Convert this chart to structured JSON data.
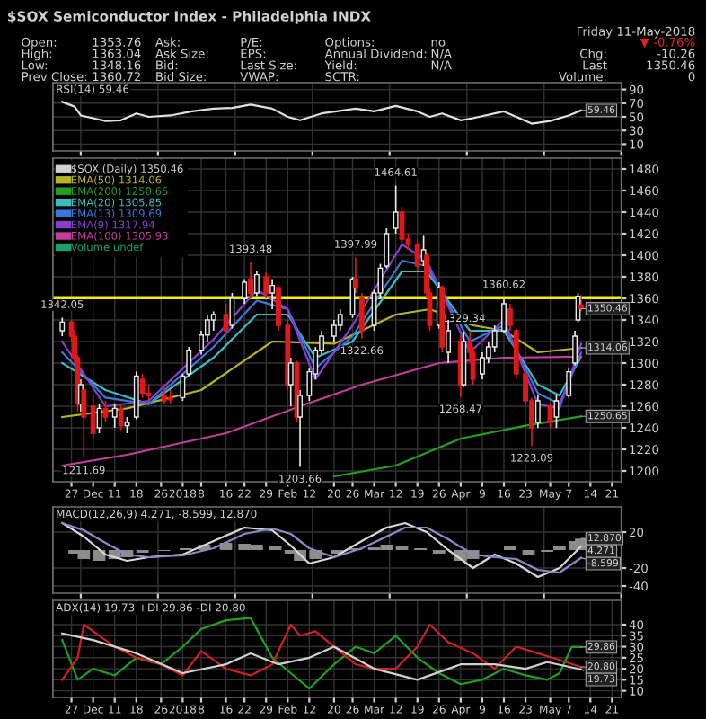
{
  "chart_data": [
    {
      "type": "line",
      "title": "$SOX Semiconductor Index - Philadelphia INDX",
      "subtitle": "RSI(14) 59.46",
      "annotations": [
        "Open:",
        "High:",
        "Low:",
        "Prev Close:",
        "1353.76",
        "1363.04",
        "1348.16",
        "1360.72",
        "Ask:",
        "Ask Size:",
        "Bid:",
        "Bid Size:",
        "P/E:",
        "EPS:",
        "Last Size:",
        "VWAP:",
        "Options:",
        "Annual Dividend:",
        "Yield:",
        "SCTR:",
        "no",
        "N/A",
        "N/A",
        "Friday 11-May-2018",
        "▼ -0.76%",
        "Chg:",
        "-10.26",
        "Last",
        "1350.46",
        "Volume:",
        "0",
        {
          "text": "59.46",
          "x": "2018-05-11",
          "y": 59.46
        }
      ],
      "xlim": [
        "2017-11-21",
        "2018-05-24"
      ],
      "ylim": [
        0,
        100
      ],
      "yticks": [
        10,
        30,
        50,
        70,
        90
      ],
      "grid": true,
      "tick_labels": "y",
      "series": [
        {
          "color": "#e0e0e0",
          "x": [
            "2017-11-24",
            "2017-11-28",
            "2017-11-30",
            "2017-12-04",
            "2017-12-08",
            "2017-12-13",
            "2017-12-18",
            "2017-12-22",
            "2017-12-29",
            "2018-01-05",
            "2018-01-12",
            "2018-01-18",
            "2018-01-24",
            "2018-01-31",
            "2018-02-05",
            "2018-02-09",
            "2018-02-16",
            "2018-02-27",
            "2018-03-05",
            "2018-03-12",
            "2018-03-19",
            "2018-03-23",
            "2018-03-27",
            "2018-04-02",
            "2018-04-06",
            "2018-04-16",
            "2018-04-20",
            "2018-04-25",
            "2018-05-01",
            "2018-05-07",
            "2018-05-11"
          ],
          "values": [
            72,
            65,
            52,
            48,
            44,
            45,
            55,
            50,
            52,
            58,
            62,
            63,
            68,
            62,
            50,
            45,
            55,
            62,
            58,
            66,
            58,
            50,
            55,
            45,
            48,
            58,
            50,
            40,
            44,
            52,
            59.46
          ]
        }
      ]
    },
    {
      "type": "candlestick",
      "subtitle": "$SOX (Daily) 1350.46",
      "x": [
        "2017-11-24",
        "2017-11-27",
        "2017-11-28",
        "2017-11-29",
        "2017-11-30",
        "2017-12-01",
        "2017-12-04",
        "2017-12-06",
        "2017-12-08",
        "2017-12-11",
        "2017-12-13",
        "2017-12-15",
        "2017-12-18",
        "2017-12-20",
        "2017-12-22",
        "2017-12-27",
        "2017-12-29",
        "2018-01-02",
        "2018-01-04",
        "2018-01-08",
        "2018-01-10",
        "2018-01-12",
        "2018-01-16",
        "2018-01-18",
        "2018-01-22",
        "2018-01-24",
        "2018-01-26",
        "2018-01-29",
        "2018-01-31",
        "2018-02-02",
        "2018-02-05",
        "2018-02-06",
        "2018-02-08",
        "2018-02-09",
        "2018-02-12",
        "2018-02-14",
        "2018-02-16",
        "2018-02-20",
        "2018-02-22",
        "2018-02-26",
        "2018-02-27",
        "2018-03-01",
        "2018-03-05",
        "2018-03-07",
        "2018-03-09",
        "2018-03-12",
        "2018-03-14",
        "2018-03-16",
        "2018-03-19",
        "2018-03-21",
        "2018-03-22",
        "2018-03-23",
        "2018-03-26",
        "2018-03-27",
        "2018-03-29",
        "2018-04-02",
        "2018-04-03",
        "2018-04-05",
        "2018-04-06",
        "2018-04-09",
        "2018-04-11",
        "2018-04-13",
        "2018-04-16",
        "2018-04-18",
        "2018-04-20",
        "2018-04-23",
        "2018-04-25",
        "2018-04-27",
        "2018-05-01",
        "2018-05-03",
        "2018-05-07",
        "2018-05-09",
        "2018-05-10",
        "2018-05-11"
      ],
      "ohlc": [
        [
          1330,
          1342.05,
          1325,
          1338
        ],
        [
          1338,
          1340,
          1320,
          1325
        ],
        [
          1325,
          1330,
          1300,
          1305
        ],
        [
          1305,
          1308,
          1255,
          1262
        ],
        [
          1262,
          1285,
          1255,
          1280
        ],
        [
          1275,
          1280,
          1211.69,
          1250
        ],
        [
          1260,
          1270,
          1230,
          1235
        ],
        [
          1240,
          1262,
          1235,
          1258
        ],
        [
          1258,
          1265,
          1245,
          1250
        ],
        [
          1250,
          1262,
          1240,
          1258
        ],
        [
          1258,
          1262,
          1238,
          1242
        ],
        [
          1242,
          1250,
          1235,
          1245
        ],
        [
          1250,
          1292,
          1248,
          1288
        ],
        [
          1285,
          1290,
          1268,
          1272
        ],
        [
          1272,
          1280,
          1265,
          1270
        ],
        [
          1270,
          1278,
          1262,
          1265
        ],
        [
          1268,
          1275,
          1262,
          1266
        ],
        [
          1268,
          1290,
          1265,
          1288
        ],
        [
          1290,
          1315,
          1288,
          1312
        ],
        [
          1312,
          1330,
          1308,
          1326
        ],
        [
          1326,
          1345,
          1320,
          1340
        ],
        [
          1340,
          1348,
          1330,
          1345
        ],
        [
          1345,
          1355,
          1325,
          1330
        ],
        [
          1335,
          1365,
          1332,
          1360
        ],
        [
          1360,
          1378,
          1355,
          1375
        ],
        [
          1378,
          1393.48,
          1360,
          1365
        ],
        [
          1365,
          1385,
          1362,
          1382
        ],
        [
          1380,
          1384,
          1360,
          1365
        ],
        [
          1365,
          1378,
          1350,
          1372
        ],
        [
          1370,
          1372,
          1330,
          1335
        ],
        [
          1335,
          1340,
          1275,
          1280
        ],
        [
          1280,
          1305,
          1260,
          1300
        ],
        [
          1300,
          1302,
          1245,
          1250
        ],
        [
          1250,
          1275,
          1203.66,
          1270
        ],
        [
          1270,
          1295,
          1265,
          1292
        ],
        [
          1290,
          1315,
          1285,
          1312
        ],
        [
          1312,
          1330,
          1308,
          1325
        ],
        [
          1325,
          1340,
          1320,
          1335
        ],
        [
          1335,
          1350,
          1330,
          1345
        ],
        [
          1345,
          1380,
          1342,
          1378
        ],
        [
          1378,
          1397.99,
          1365,
          1370
        ],
        [
          1360,
          1365,
          1322.66,
          1330
        ],
        [
          1335,
          1368,
          1330,
          1365
        ],
        [
          1365,
          1392,
          1360,
          1388
        ],
        [
          1390,
          1425,
          1388,
          1420
        ],
        [
          1425,
          1464.61,
          1420,
          1440
        ],
        [
          1440,
          1445,
          1410,
          1415
        ],
        [
          1415,
          1420,
          1405,
          1410
        ],
        [
          1410,
          1412,
          1385,
          1390
        ],
        [
          1395,
          1418,
          1390,
          1405
        ],
        [
          1400,
          1402,
          1360,
          1365
        ],
        [
          1365,
          1370,
          1330,
          1335
        ],
        [
          1335,
          1375,
          1332,
          1370
        ],
        [
          1370,
          1372,
          1310,
          1315
        ],
        [
          1310,
          1340,
          1300,
          1330
        ],
        [
          1320,
          1325,
          1268.47,
          1280
        ],
        [
          1280,
          1329.34,
          1278,
          1320
        ],
        [
          1320,
          1330,
          1300,
          1310
        ],
        [
          1310,
          1315,
          1280,
          1285
        ],
        [
          1290,
          1310,
          1285,
          1305
        ],
        [
          1305,
          1320,
          1300,
          1315
        ],
        [
          1315,
          1335,
          1310,
          1330
        ],
        [
          1330,
          1360.62,
          1328,
          1355
        ],
        [
          1350,
          1355,
          1330,
          1335
        ],
        [
          1330,
          1332,
          1285,
          1290
        ],
        [
          1290,
          1292,
          1260,
          1265
        ],
        [
          1265,
          1268,
          1223.09,
          1240
        ],
        [
          1245,
          1270,
          1240,
          1265
        ],
        [
          1260,
          1262,
          1240,
          1245
        ],
        [
          1250,
          1270,
          1240,
          1265
        ],
        [
          1270,
          1295,
          1268,
          1292
        ],
        [
          1300,
          1330,
          1298,
          1325
        ],
        [
          1340,
          1365,
          1338,
          1362
        ],
        [
          1353.76,
          1363.04,
          1348.16,
          1350.46
        ]
      ],
      "series": [
        {
          "type": "line",
          "name": "EMA(50) 1314.06",
          "color": "#b5b52a",
          "x": [
            "2017-11-24",
            "2017-12-15",
            "2018-01-08",
            "2018-01-31",
            "2018-02-20",
            "2018-03-12",
            "2018-03-23",
            "2018-04-06",
            "2018-04-16",
            "2018-04-27",
            "2018-05-11"
          ],
          "values": [
            1250,
            1258,
            1275,
            1320,
            1318,
            1345,
            1350,
            1335,
            1330,
            1310,
            1314.06
          ]
        },
        {
          "type": "line",
          "name": "EMA(200) 1250.65",
          "color": "#22a022",
          "x": [
            "2018-02-20",
            "2018-03-12",
            "2018-04-02",
            "2018-04-23",
            "2018-05-11"
          ],
          "values": [
            1195,
            1205,
            1230,
            1242,
            1250.65
          ]
        },
        {
          "type": "line",
          "name": "EMA(20) 1305.85",
          "color": "#3cbcbc",
          "x": [
            "2017-11-24",
            "2017-12-08",
            "2017-12-22",
            "2018-01-12",
            "2018-01-26",
            "2018-02-05",
            "2018-02-14",
            "2018-02-26",
            "2018-03-14",
            "2018-03-22",
            "2018-04-05",
            "2018-04-16",
            "2018-04-27",
            "2018-05-04",
            "2018-05-11"
          ],
          "values": [
            1300,
            1275,
            1262,
            1305,
            1345,
            1345,
            1305,
            1320,
            1385,
            1385,
            1330,
            1330,
            1280,
            1270,
            1305.85
          ]
        },
        {
          "type": "line",
          "name": "EMA(13) 1309.69",
          "color": "#3a78dc",
          "x": [
            "2017-11-24",
            "2017-12-08",
            "2017-12-22",
            "2018-01-12",
            "2018-01-26",
            "2018-02-05",
            "2018-02-14",
            "2018-02-26",
            "2018-03-14",
            "2018-03-22",
            "2018-04-05",
            "2018-04-16",
            "2018-04-27",
            "2018-05-04",
            "2018-05-11"
          ],
          "values": [
            1310,
            1268,
            1262,
            1315,
            1358,
            1350,
            1295,
            1325,
            1395,
            1390,
            1320,
            1335,
            1272,
            1262,
            1309.69
          ]
        },
        {
          "type": "line",
          "name": "EMA(9) 1317.94",
          "color": "#8a3ed0",
          "x": [
            "2017-11-24",
            "2017-12-08",
            "2017-12-22",
            "2018-01-12",
            "2018-01-26",
            "2018-02-05",
            "2018-02-14",
            "2018-02-26",
            "2018-03-14",
            "2018-03-22",
            "2018-04-05",
            "2018-04-16",
            "2018-04-27",
            "2018-05-04",
            "2018-05-11"
          ],
          "values": [
            1320,
            1260,
            1265,
            1322,
            1368,
            1350,
            1285,
            1335,
            1410,
            1395,
            1310,
            1340,
            1262,
            1258,
            1317.94
          ]
        },
        {
          "type": "line",
          "name": "EMA(100) 1305.93",
          "color": "#c43c9c",
          "x": [
            "2017-11-24",
            "2017-12-15",
            "2018-01-16",
            "2018-02-09",
            "2018-03-01",
            "2018-03-26",
            "2018-04-16",
            "2018-05-11"
          ],
          "values": [
            1205,
            1215,
            1235,
            1260,
            1280,
            1300,
            1305,
            1305.93
          ]
        }
      ],
      "annotations": [
        "Volume undef",
        {
          "text": "1342.05",
          "x": "2017-11-24",
          "y": 1342.05
        },
        {
          "text": "1211.69",
          "x": "2017-12-01",
          "y": 1211.69
        },
        {
          "text": "1393.48",
          "x": "2018-01-24",
          "y": 1393.48
        },
        {
          "text": "1203.66",
          "x": "2018-02-09",
          "y": 1203.66
        },
        {
          "text": "1397.99",
          "x": "2018-02-27",
          "y": 1397.99
        },
        {
          "text": "1322.66",
          "x": "2018-03-01",
          "y": 1322.66
        },
        {
          "text": "1464.61",
          "x": "2018-03-12",
          "y": 1464.61
        },
        {
          "text": "1329.34",
          "x": "2018-04-03",
          "y": 1329.34
        },
        {
          "text": "1268.47",
          "x": "2018-04-02",
          "y": 1268.47
        },
        {
          "text": "1360.62",
          "x": "2018-04-16",
          "y": 1360.62
        },
        {
          "text": "1223.09",
          "x": "2018-04-25",
          "y": 1223.09
        },
        {
          "text": "1350.46",
          "x": "2018-05-11",
          "y": 1350.46
        },
        {
          "text": "1314.06",
          "x": "2018-05-11",
          "y": 1314.06
        },
        {
          "text": "1250.65",
          "x": "2018-05-11",
          "y": 1250.65
        }
      ],
      "ref_lines": [
        {
          "axis": "y",
          "value": 1360.62,
          "color": "#f0f000"
        }
      ],
      "xlim": [
        "2017-11-21",
        "2018-05-24"
      ],
      "ylim": [
        1190,
        1490
      ],
      "yticks": [
        1200,
        1220,
        1240,
        1260,
        1280,
        1300,
        1320,
        1340,
        1360,
        1380,
        1400,
        1420,
        1440,
        1460,
        1480
      ],
      "xticks": [
        {
          "value": "2017-11-27",
          "label": "27"
        },
        {
          "value": "2017-12-04",
          "label": "Dec"
        },
        {
          "value": "2017-12-11",
          "label": "11"
        },
        {
          "value": "2017-12-18",
          "label": "18"
        },
        {
          "value": "2017-12-26",
          "label": "26"
        },
        {
          "value": "2018-01-02",
          "label": "2018"
        },
        {
          "value": "2018-01-08",
          "label": "8"
        },
        {
          "value": "2018-01-16",
          "label": "16"
        },
        {
          "value": "2018-01-22",
          "label": "22"
        },
        {
          "value": "2018-01-29",
          "label": "29"
        },
        {
          "value": "2018-02-05",
          "label": "Feb"
        },
        {
          "value": "2018-02-12",
          "label": "12"
        },
        {
          "value": "2018-02-20",
          "label": "20"
        },
        {
          "value": "2018-02-26",
          "label": "26"
        },
        {
          "value": "2018-03-05",
          "label": "Mar"
        },
        {
          "value": "2018-03-12",
          "label": "12"
        },
        {
          "value": "2018-03-19",
          "label": "19"
        },
        {
          "value": "2018-03-26",
          "label": "26"
        },
        {
          "value": "2018-04-02",
          "label": "Apr"
        },
        {
          "value": "2018-04-09",
          "label": "9"
        },
        {
          "value": "2018-04-16",
          "label": "16"
        },
        {
          "value": "2018-04-23",
          "label": "23"
        },
        {
          "value": "2018-05-01",
          "label": "May"
        },
        {
          "value": "2018-05-07",
          "label": "7"
        },
        {
          "value": "2018-05-14",
          "label": "14"
        },
        {
          "value": "2018-05-21",
          "label": "21"
        }
      ],
      "grid": true,
      "legend": "top left"
    },
    {
      "type": "line",
      "subtitle": "MACD(12,26,9) 4.271, -8.599, 12.870",
      "xlim": [
        "2017-11-21",
        "2018-05-24"
      ],
      "ylim": [
        -48,
        48
      ],
      "yticks": [
        -40,
        -20,
        20
      ],
      "grid": true,
      "tick_labels": "y",
      "annotations": [
        {
          "text": "12.870",
          "x": "2018-05-11",
          "y": 12.87
        },
        {
          "text": "4.271",
          "x": "2018-05-11",
          "y": 4.271
        },
        {
          "text": "-8.599",
          "x": "2018-05-11",
          "y": -8.599
        }
      ],
      "series": [
        {
          "type": "bar",
          "color": "#8c8c8c",
          "x": [
            "2017-11-24",
            "2017-11-28",
            "2017-12-01",
            "2017-12-06",
            "2017-12-11",
            "2017-12-15",
            "2017-12-20",
            "2017-12-27",
            "2018-01-03",
            "2018-01-09",
            "2018-01-16",
            "2018-01-22",
            "2018-01-26",
            "2018-02-01",
            "2018-02-06",
            "2018-02-09",
            "2018-02-14",
            "2018-02-21",
            "2018-02-27",
            "2018-03-05",
            "2018-03-09",
            "2018-03-14",
            "2018-03-20",
            "2018-03-26",
            "2018-04-02",
            "2018-04-06",
            "2018-04-12",
            "2018-04-18",
            "2018-04-24",
            "2018-04-30",
            "2018-05-04",
            "2018-05-09",
            "2018-05-11"
          ],
          "values": [
            0,
            -4,
            -10,
            -12,
            -10,
            -8,
            -3,
            -1,
            2,
            6,
            8,
            7,
            6,
            4,
            -4,
            -12,
            -10,
            -4,
            2,
            3,
            6,
            5,
            2,
            -4,
            -12,
            -10,
            0,
            4,
            -5,
            -2,
            5,
            10,
            12.87
          ]
        },
        {
          "type": "line",
          "color": "#d8d8d8",
          "x": [
            "2017-11-24",
            "2017-12-01",
            "2017-12-08",
            "2017-12-15",
            "2017-12-22",
            "2018-01-02",
            "2018-01-12",
            "2018-01-22",
            "2018-01-31",
            "2018-02-06",
            "2018-02-12",
            "2018-02-20",
            "2018-03-01",
            "2018-03-09",
            "2018-03-15",
            "2018-03-22",
            "2018-03-29",
            "2018-04-06",
            "2018-04-13",
            "2018-04-20",
            "2018-04-27",
            "2018-05-04",
            "2018-05-11"
          ],
          "values": [
            30,
            15,
            -5,
            -12,
            -8,
            -5,
            10,
            25,
            22,
            5,
            -15,
            -8,
            10,
            25,
            30,
            20,
            0,
            -20,
            -5,
            -15,
            -30,
            -20,
            4.271
          ]
        },
        {
          "type": "line",
          "color": "#8a8ac8",
          "x": [
            "2017-11-24",
            "2017-12-01",
            "2017-12-08",
            "2017-12-15",
            "2017-12-22",
            "2018-01-02",
            "2018-01-12",
            "2018-01-22",
            "2018-01-31",
            "2018-02-06",
            "2018-02-12",
            "2018-02-20",
            "2018-03-01",
            "2018-03-09",
            "2018-03-15",
            "2018-03-22",
            "2018-03-29",
            "2018-04-06",
            "2018-04-13",
            "2018-04-20",
            "2018-04-27",
            "2018-05-04",
            "2018-05-11"
          ],
          "values": [
            30,
            22,
            8,
            -5,
            -8,
            -6,
            2,
            18,
            24,
            18,
            2,
            -8,
            2,
            15,
            25,
            25,
            12,
            -5,
            -8,
            -10,
            -22,
            -25,
            -8.599
          ]
        }
      ]
    },
    {
      "type": "line",
      "subtitle": "ADX(14) 19.73 +DI 29.86 -DI 20.80",
      "xlim": [
        "2017-11-21",
        "2018-05-24"
      ],
      "ylim": [
        7,
        51
      ],
      "yticks": [
        10,
        15,
        20,
        25,
        30,
        35,
        40
      ],
      "grid": true,
      "xticks": [
        {
          "value": "2017-11-27",
          "label": "27"
        },
        {
          "value": "2017-12-04",
          "label": "Dec"
        },
        {
          "value": "2017-12-11",
          "label": "11"
        },
        {
          "value": "2017-12-18",
          "label": "18"
        },
        {
          "value": "2017-12-26",
          "label": "26"
        },
        {
          "value": "2018-01-02",
          "label": "2018"
        },
        {
          "value": "2018-01-08",
          "label": "8"
        },
        {
          "value": "2018-01-16",
          "label": "16"
        },
        {
          "value": "2018-01-22",
          "label": "22"
        },
        {
          "value": "2018-01-29",
          "label": "29"
        },
        {
          "value": "2018-02-05",
          "label": "Feb"
        },
        {
          "value": "2018-02-12",
          "label": "12"
        },
        {
          "value": "2018-02-20",
          "label": "20"
        },
        {
          "value": "2018-02-26",
          "label": "26"
        },
        {
          "value": "2018-03-05",
          "label": "Mar"
        },
        {
          "value": "2018-03-12",
          "label": "12"
        },
        {
          "value": "2018-03-19",
          "label": "19"
        },
        {
          "value": "2018-03-26",
          "label": "26"
        },
        {
          "value": "2018-04-02",
          "label": "Apr"
        },
        {
          "value": "2018-04-09",
          "label": "9"
        },
        {
          "value": "2018-04-16",
          "label": "16"
        },
        {
          "value": "2018-04-23",
          "label": "23"
        },
        {
          "value": "2018-05-01",
          "label": "May"
        },
        {
          "value": "2018-05-07",
          "label": "7"
        },
        {
          "value": "2018-05-14",
          "label": "14"
        },
        {
          "value": "2018-05-21",
          "label": "21"
        }
      ],
      "annotations": [
        {
          "text": "29.86",
          "x": "2018-05-11",
          "y": 29.86
        },
        {
          "text": "20.80",
          "x": "2018-05-11",
          "y": 20.8
        },
        {
          "text": "19.73",
          "x": "2018-05-11",
          "y": 19.73
        }
      ],
      "series": [
        {
          "color": "#1fa01f",
          "x": [
            "2017-11-24",
            "2017-11-29",
            "2017-12-04",
            "2017-12-11",
            "2017-12-18",
            "2017-12-26",
            "2018-01-02",
            "2018-01-08",
            "2018-01-16",
            "2018-01-24",
            "2018-01-31",
            "2018-02-06",
            "2018-02-12",
            "2018-02-20",
            "2018-02-27",
            "2018-03-05",
            "2018-03-12",
            "2018-03-19",
            "2018-03-26",
            "2018-04-02",
            "2018-04-09",
            "2018-04-16",
            "2018-04-23",
            "2018-04-30",
            "2018-05-04",
            "2018-05-08",
            "2018-05-11"
          ],
          "values": [
            33,
            15,
            20,
            17,
            25,
            22,
            30,
            38,
            42,
            43,
            25,
            18,
            11,
            22,
            30,
            27,
            35,
            25,
            18,
            13,
            15,
            20,
            17,
            15,
            18,
            30,
            29.86
          ]
        },
        {
          "color": "#d02020",
          "x": [
            "2017-11-24",
            "2017-11-29",
            "2017-12-01",
            "2017-12-11",
            "2017-12-18",
            "2017-12-26",
            "2018-01-02",
            "2018-01-08",
            "2018-01-16",
            "2018-01-24",
            "2018-01-31",
            "2018-02-06",
            "2018-02-09",
            "2018-02-14",
            "2018-02-20",
            "2018-02-27",
            "2018-03-05",
            "2018-03-12",
            "2018-03-19",
            "2018-03-23",
            "2018-03-29",
            "2018-04-06",
            "2018-04-13",
            "2018-04-20",
            "2018-04-27",
            "2018-05-04",
            "2018-05-11"
          ],
          "values": [
            15,
            25,
            40,
            30,
            25,
            22,
            17,
            28,
            20,
            17,
            22,
            40,
            35,
            37,
            30,
            22,
            20,
            20,
            30,
            40,
            32,
            27,
            20,
            30,
            27,
            24,
            20.8
          ]
        },
        {
          "color": "#d0d0d0",
          "x": [
            "2017-11-24",
            "2017-12-04",
            "2017-12-18",
            "2018-01-02",
            "2018-01-16",
            "2018-01-24",
            "2018-02-02",
            "2018-02-12",
            "2018-02-20",
            "2018-03-05",
            "2018-03-19",
            "2018-04-02",
            "2018-04-13",
            "2018-04-23",
            "2018-04-30",
            "2018-05-11"
          ],
          "values": [
            36,
            33,
            27,
            18,
            22,
            27,
            22,
            25,
            30,
            20,
            15,
            22,
            22,
            20,
            23,
            19.73
          ]
        }
      ]
    }
  ]
}
